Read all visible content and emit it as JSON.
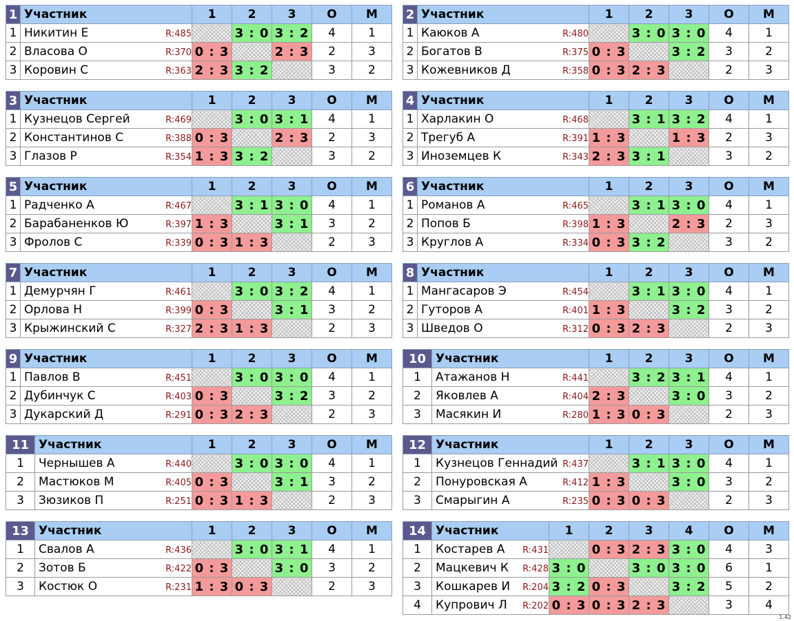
{
  "header_label": "Участник",
  "col_o": "О",
  "col_m": "М",
  "groups": [
    {
      "num": "1",
      "cols": [
        "1",
        "2",
        "3"
      ],
      "players": [
        {
          "idx": "1",
          "name": "Никитин Е",
          "rating": "R:485",
          "results": [
            "",
            "3 : 0",
            "3 : 2"
          ],
          "o": "4",
          "m": "1"
        },
        {
          "idx": "2",
          "name": "Власова О",
          "rating": "R:370",
          "results": [
            "0 : 3",
            "",
            "2 : 3"
          ],
          "o": "2",
          "m": "3"
        },
        {
          "idx": "3",
          "name": "Коровин С",
          "rating": "R:363",
          "results": [
            "2 : 3",
            "3 : 2",
            ""
          ],
          "o": "3",
          "m": "2"
        }
      ]
    },
    {
      "num": "2",
      "cols": [
        "1",
        "2",
        "3"
      ],
      "players": [
        {
          "idx": "1",
          "name": "Каюков А",
          "rating": "R:480",
          "results": [
            "",
            "3 : 0",
            "3 : 0"
          ],
          "o": "4",
          "m": "1"
        },
        {
          "idx": "2",
          "name": "Богатов В",
          "rating": "R:375",
          "results": [
            "0 : 3",
            "",
            "3 : 2"
          ],
          "o": "3",
          "m": "2"
        },
        {
          "idx": "3",
          "name": "Кожевников Д",
          "rating": "R:358",
          "results": [
            "0 : 3",
            "2 : 3",
            ""
          ],
          "o": "2",
          "m": "3"
        }
      ]
    },
    {
      "num": "3",
      "cols": [
        "1",
        "2",
        "3"
      ],
      "players": [
        {
          "idx": "1",
          "name": "Кузнецов Сергей",
          "rating": "R:469",
          "results": [
            "",
            "3 : 0",
            "3 : 1"
          ],
          "o": "4",
          "m": "1"
        },
        {
          "idx": "2",
          "name": "Константинов С",
          "rating": "R:388",
          "results": [
            "0 : 3",
            "",
            "2 : 3"
          ],
          "o": "2",
          "m": "3"
        },
        {
          "idx": "3",
          "name": "Глазов Р",
          "rating": "R:354",
          "results": [
            "1 : 3",
            "3 : 2",
            ""
          ],
          "o": "3",
          "m": "2"
        }
      ]
    },
    {
      "num": "4",
      "cols": [
        "1",
        "2",
        "3"
      ],
      "players": [
        {
          "idx": "1",
          "name": "Харлакин О",
          "rating": "R:468",
          "results": [
            "",
            "3 : 1",
            "3 : 2"
          ],
          "o": "4",
          "m": "1"
        },
        {
          "idx": "2",
          "name": "Трегуб А",
          "rating": "R:391",
          "results": [
            "1 : 3",
            "",
            "1 : 3"
          ],
          "o": "2",
          "m": "3"
        },
        {
          "idx": "3",
          "name": "Иноземцев К",
          "rating": "R:343",
          "results": [
            "2 : 3",
            "3 : 1",
            ""
          ],
          "o": "3",
          "m": "2"
        }
      ]
    },
    {
      "num": "5",
      "cols": [
        "1",
        "2",
        "3"
      ],
      "players": [
        {
          "idx": "1",
          "name": "Радченко А",
          "rating": "R:467",
          "results": [
            "",
            "3 : 1",
            "3 : 0"
          ],
          "o": "4",
          "m": "1"
        },
        {
          "idx": "2",
          "name": "Барабаненков Ю",
          "rating": "R:397",
          "results": [
            "1 : 3",
            "",
            "3 : 1"
          ],
          "o": "3",
          "m": "2"
        },
        {
          "idx": "3",
          "name": "Фролов С",
          "rating": "R:339",
          "results": [
            "0 : 3",
            "1 : 3",
            ""
          ],
          "o": "2",
          "m": "3"
        }
      ]
    },
    {
      "num": "6",
      "cols": [
        "1",
        "2",
        "3"
      ],
      "players": [
        {
          "idx": "1",
          "name": "Романов А",
          "rating": "R:465",
          "results": [
            "",
            "3 : 1",
            "3 : 0"
          ],
          "o": "4",
          "m": "1"
        },
        {
          "idx": "2",
          "name": "Попов Б",
          "rating": "R:398",
          "results": [
            "1 : 3",
            "",
            "2 : 3"
          ],
          "o": "2",
          "m": "3"
        },
        {
          "idx": "3",
          "name": "Круглов А",
          "rating": "R:334",
          "results": [
            "0 : 3",
            "3 : 2",
            ""
          ],
          "o": "3",
          "m": "2"
        }
      ]
    },
    {
      "num": "7",
      "cols": [
        "1",
        "2",
        "3"
      ],
      "players": [
        {
          "idx": "1",
          "name": "Демурчян Г",
          "rating": "R:461",
          "results": [
            "",
            "3 : 0",
            "3 : 2"
          ],
          "o": "4",
          "m": "1"
        },
        {
          "idx": "2",
          "name": "Орлова Н",
          "rating": "R:399",
          "results": [
            "0 : 3",
            "",
            "3 : 1"
          ],
          "o": "3",
          "m": "2"
        },
        {
          "idx": "3",
          "name": "Крыжинский С",
          "rating": "R:327",
          "results": [
            "2 : 3",
            "1 : 3",
            ""
          ],
          "o": "2",
          "m": "3"
        }
      ]
    },
    {
      "num": "8",
      "cols": [
        "1",
        "2",
        "3"
      ],
      "players": [
        {
          "idx": "1",
          "name": "Мангасаров Э",
          "rating": "R:454",
          "results": [
            "",
            "3 : 1",
            "3 : 0"
          ],
          "o": "4",
          "m": "1"
        },
        {
          "idx": "2",
          "name": "Гуторов А",
          "rating": "R:401",
          "results": [
            "1 : 3",
            "",
            "3 : 2"
          ],
          "o": "3",
          "m": "2"
        },
        {
          "idx": "3",
          "name": "Шведов О",
          "rating": "R:312",
          "results": [
            "0 : 3",
            "2 : 3",
            ""
          ],
          "o": "2",
          "m": "3"
        }
      ]
    },
    {
      "num": "9",
      "cols": [
        "1",
        "2",
        "3"
      ],
      "players": [
        {
          "idx": "1",
          "name": "Павлов В",
          "rating": "R:451",
          "results": [
            "",
            "3 : 0",
            "3 : 0"
          ],
          "o": "4",
          "m": "1"
        },
        {
          "idx": "2",
          "name": "Дубинчук С",
          "rating": "R:403",
          "results": [
            "0 : 3",
            "",
            "3 : 2"
          ],
          "o": "3",
          "m": "2"
        },
        {
          "idx": "3",
          "name": "Дукарский Д",
          "rating": "R:291",
          "results": [
            "0 : 3",
            "2 : 3",
            ""
          ],
          "o": "2",
          "m": "3"
        }
      ]
    },
    {
      "num": "10",
      "cols": [
        "1",
        "2",
        "3"
      ],
      "players": [
        {
          "idx": "1",
          "name": "Атажанов Н",
          "rating": "R:441",
          "results": [
            "",
            "3 : 2",
            "3 : 1"
          ],
          "o": "4",
          "m": "1"
        },
        {
          "idx": "2",
          "name": "Яковлев А",
          "rating": "R:404",
          "results": [
            "2 : 3",
            "",
            "3 : 0"
          ],
          "o": "3",
          "m": "2"
        },
        {
          "idx": "3",
          "name": "Масякин И",
          "rating": "R:280",
          "results": [
            "1 : 3",
            "0 : 3",
            ""
          ],
          "o": "2",
          "m": "3"
        }
      ]
    },
    {
      "num": "11",
      "cols": [
        "1",
        "2",
        "3"
      ],
      "players": [
        {
          "idx": "1",
          "name": "Чернышев А",
          "rating": "R:440",
          "results": [
            "",
            "3 : 0",
            "3 : 0"
          ],
          "o": "4",
          "m": "1"
        },
        {
          "idx": "2",
          "name": "Мастюков М",
          "rating": "R:405",
          "results": [
            "0 : 3",
            "",
            "3 : 1"
          ],
          "o": "3",
          "m": "2"
        },
        {
          "idx": "3",
          "name": "Зюзиков П",
          "rating": "R:251",
          "results": [
            "0 : 3",
            "1 : 3",
            ""
          ],
          "o": "2",
          "m": "3"
        }
      ]
    },
    {
      "num": "12",
      "cols": [
        "1",
        "2",
        "3"
      ],
      "players": [
        {
          "idx": "1",
          "name": "Кузнецов Геннадий",
          "rating": "R:437",
          "results": [
            "",
            "3 : 1",
            "3 : 0"
          ],
          "o": "4",
          "m": "1"
        },
        {
          "idx": "2",
          "name": "Понуровская А",
          "rating": "R:412",
          "results": [
            "1 : 3",
            "",
            "3 : 0"
          ],
          "o": "3",
          "m": "2"
        },
        {
          "idx": "3",
          "name": "Смарыгин А",
          "rating": "R:235",
          "results": [
            "0 : 3",
            "0 : 3",
            ""
          ],
          "o": "2",
          "m": "3"
        }
      ]
    },
    {
      "num": "13",
      "cols": [
        "1",
        "2",
        "3"
      ],
      "players": [
        {
          "idx": "1",
          "name": "Свалов А",
          "rating": "R:436",
          "results": [
            "",
            "3 : 0",
            "3 : 1"
          ],
          "o": "4",
          "m": "1"
        },
        {
          "idx": "2",
          "name": "Зотов Б",
          "rating": "R:422",
          "results": [
            "0 : 3",
            "",
            "3 : 0"
          ],
          "o": "3",
          "m": "2"
        },
        {
          "idx": "3",
          "name": "Костюк О",
          "rating": "R:231",
          "results": [
            "1 : 3",
            "0 : 3",
            ""
          ],
          "o": "2",
          "m": "3"
        }
      ]
    },
    {
      "num": "14",
      "cols": [
        "1",
        "2",
        "3",
        "4"
      ],
      "players": [
        {
          "idx": "1",
          "name": "Костарев А",
          "rating": "R:431",
          "results": [
            "",
            "0 : 3",
            "2 : 3",
            "3 : 0"
          ],
          "o": "4",
          "m": "3"
        },
        {
          "idx": "2",
          "name": "Мацкевич К",
          "rating": "R:428",
          "results": [
            "3 : 0",
            "",
            "3 : 0",
            "3 : 0"
          ],
          "o": "6",
          "m": "1"
        },
        {
          "idx": "3",
          "name": "Кошкарев И",
          "rating": "R:204",
          "results": [
            "3 : 2",
            "0 : 3",
            "",
            "3 : 2"
          ],
          "o": "5",
          "m": "2"
        },
        {
          "idx": "4",
          "name": "Купрович Л",
          "rating": "R:202",
          "results": [
            "0 : 3",
            "0 : 3",
            "2 : 3",
            ""
          ],
          "o": "3",
          "m": "4"
        }
      ]
    }
  ],
  "version": "1.42"
}
